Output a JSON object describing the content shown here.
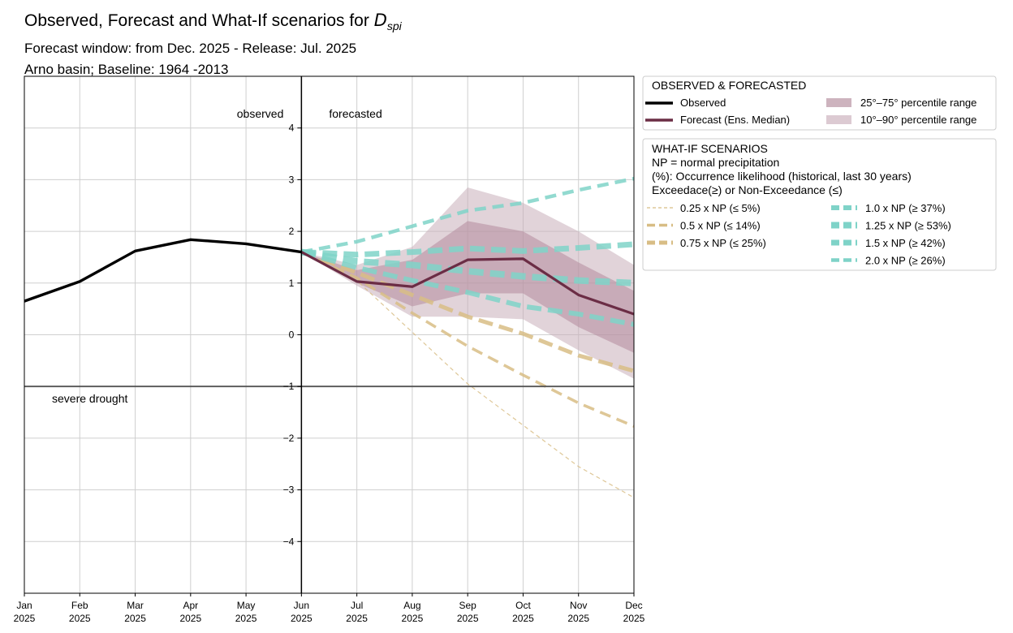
{
  "header": {
    "title_prefix": "Observed, Forecast and  What-If scenarios for ",
    "title_var": "D",
    "title_sub": "spi",
    "subtitle1": "Forecast window: from Dec. 2025 - Release: Jul. 2025",
    "subtitle2": "Arno basin; Baseline: 1964 -2013"
  },
  "chart_data": {
    "type": "line",
    "x": [
      "Jan 2025",
      "Feb 2025",
      "Mar 2025",
      "Apr 2025",
      "May 2025",
      "Jun 2025",
      "Jul 2025",
      "Aug 2025",
      "Sep 2025",
      "Oct 2025",
      "Nov 2025",
      "Dec 2025"
    ],
    "x_tick_month": [
      "Jan",
      "Feb",
      "Mar",
      "Apr",
      "May",
      "Jun",
      "Jul",
      "Aug",
      "Sep",
      "Oct",
      "Nov",
      "Dec"
    ],
    "x_tick_year": [
      "2025",
      "2025",
      "2025",
      "2025",
      "2025",
      "2025",
      "2025",
      "2025",
      "2025",
      "2025",
      "2025",
      "2025"
    ],
    "ylim": [
      -5,
      5
    ],
    "y_ticks": [
      -4,
      -3,
      -2,
      -1,
      0,
      1,
      2,
      3,
      4
    ],
    "y_tick_labels": [
      "−4",
      "−3",
      "−2",
      "−1",
      "0",
      "1",
      "2",
      "3",
      "4"
    ],
    "grid": true,
    "split_index": 5,
    "annotations": {
      "observed": "observed",
      "forecasted": "forecasted",
      "threshold_label": "severe drought",
      "threshold_value": -1
    },
    "observed": {
      "name": "Observed",
      "color": "#000000",
      "values": [
        0.65,
        1.03,
        1.62,
        1.84,
        1.76,
        1.6
      ]
    },
    "forecast_median": {
      "name": "Forecast (Ens. Median)",
      "color": "#6b2d45",
      "values": [
        1.6,
        1.03,
        0.93,
        1.45,
        1.47,
        0.77,
        0.4
      ]
    },
    "band_25_75": {
      "name": "25°–75° percentile range",
      "color": "#b48a9c",
      "low": [
        1.6,
        1.0,
        0.55,
        0.8,
        0.8,
        0.15,
        -0.35
      ],
      "high": [
        1.6,
        1.25,
        1.45,
        2.2,
        2.0,
        1.4,
        0.85
      ]
    },
    "band_10_90": {
      "name": "10°–90° percentile range",
      "color": "#c9aeb9",
      "low": [
        1.6,
        0.95,
        0.35,
        0.35,
        0.3,
        -0.3,
        -0.85
      ],
      "high": [
        1.6,
        1.35,
        1.7,
        2.85,
        2.55,
        2.0,
        1.35
      ]
    },
    "whatif": [
      {
        "name": "0.25 x NP (≤ 5%)",
        "color": "#d8bd85",
        "width": 1.2,
        "dash": "5,4",
        "values": [
          1.6,
          1.05,
          0.05,
          -0.95,
          -1.75,
          -2.55,
          -3.15
        ]
      },
      {
        "name": "0.5 x NP (≤ 14%)",
        "color": "#d8bd85",
        "width": 3.5,
        "dash": "14,8",
        "values": [
          1.6,
          1.1,
          0.42,
          -0.22,
          -0.78,
          -1.32,
          -1.77
        ]
      },
      {
        "name": "0.75 x NP (≤ 25%)",
        "color": "#d8bd85",
        "width": 5,
        "dash": "18,8",
        "values": [
          1.6,
          1.2,
          0.77,
          0.35,
          0.02,
          -0.4,
          -0.7
        ]
      },
      {
        "name": "1.0 x NP (≥ 37%)",
        "color": "#7fd3c8",
        "width": 6,
        "dash": "18,8",
        "values": [
          1.6,
          1.3,
          1.05,
          0.82,
          0.55,
          0.4,
          0.2
        ]
      },
      {
        "name": "1.25 x NP (≥ 53%)",
        "color": "#7fd3c8",
        "width": 8,
        "dash": "18,8",
        "values": [
          1.6,
          1.42,
          1.35,
          1.23,
          1.13,
          1.05,
          1.0
        ]
      },
      {
        "name": "1.5 x NP (≥ 42%)",
        "color": "#7fd3c8",
        "width": 7,
        "dash": "18,8",
        "values": [
          1.6,
          1.55,
          1.6,
          1.67,
          1.62,
          1.68,
          1.75
        ]
      },
      {
        "name": "2.0 x NP (≥ 26%)",
        "color": "#7fd3c8",
        "width": 4.5,
        "dash": "14,8",
        "values": [
          1.6,
          1.8,
          2.1,
          2.4,
          2.55,
          2.8,
          3.02
        ]
      }
    ],
    "legend": {
      "placement": "right",
      "obs_title": "OBSERVED & FORECASTED",
      "whatif_title": "WHAT-IF SCENARIOS",
      "whatif_desc": [
        "NP = normal precipitation",
        "(%): Occurrence likelihood (historical, last 30 years)",
        "Exceedace(≥) or Non-Exceedance (≤)"
      ]
    }
  }
}
